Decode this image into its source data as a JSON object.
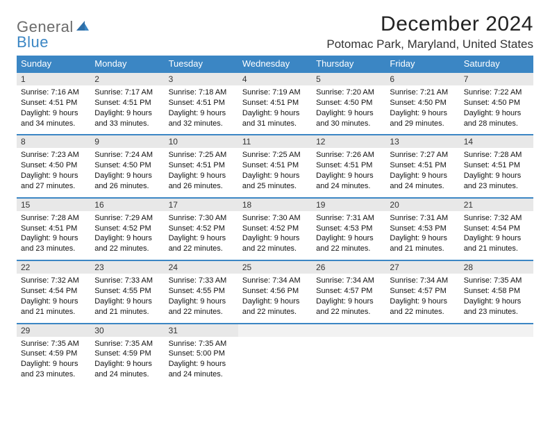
{
  "logo": {
    "text1": "General",
    "text2": "Blue"
  },
  "title": "December 2024",
  "location": "Potomac Park, Maryland, United States",
  "colors": {
    "header_bg": "#3b86c4",
    "header_text": "#ffffff",
    "daynum_bg": "#e8e8e8",
    "border": "#3b86c4",
    "logo_gray": "#6b6b6b",
    "logo_blue": "#3b86c4"
  },
  "dayHeaders": [
    "Sunday",
    "Monday",
    "Tuesday",
    "Wednesday",
    "Thursday",
    "Friday",
    "Saturday"
  ],
  "weeks": [
    [
      {
        "n": "1",
        "sr": "7:16 AM",
        "ss": "4:51 PM",
        "dl": "9 hours and 34 minutes."
      },
      {
        "n": "2",
        "sr": "7:17 AM",
        "ss": "4:51 PM",
        "dl": "9 hours and 33 minutes."
      },
      {
        "n": "3",
        "sr": "7:18 AM",
        "ss": "4:51 PM",
        "dl": "9 hours and 32 minutes."
      },
      {
        "n": "4",
        "sr": "7:19 AM",
        "ss": "4:51 PM",
        "dl": "9 hours and 31 minutes."
      },
      {
        "n": "5",
        "sr": "7:20 AM",
        "ss": "4:50 PM",
        "dl": "9 hours and 30 minutes."
      },
      {
        "n": "6",
        "sr": "7:21 AM",
        "ss": "4:50 PM",
        "dl": "9 hours and 29 minutes."
      },
      {
        "n": "7",
        "sr": "7:22 AM",
        "ss": "4:50 PM",
        "dl": "9 hours and 28 minutes."
      }
    ],
    [
      {
        "n": "8",
        "sr": "7:23 AM",
        "ss": "4:50 PM",
        "dl": "9 hours and 27 minutes."
      },
      {
        "n": "9",
        "sr": "7:24 AM",
        "ss": "4:50 PM",
        "dl": "9 hours and 26 minutes."
      },
      {
        "n": "10",
        "sr": "7:25 AM",
        "ss": "4:51 PM",
        "dl": "9 hours and 26 minutes."
      },
      {
        "n": "11",
        "sr": "7:25 AM",
        "ss": "4:51 PM",
        "dl": "9 hours and 25 minutes."
      },
      {
        "n": "12",
        "sr": "7:26 AM",
        "ss": "4:51 PM",
        "dl": "9 hours and 24 minutes."
      },
      {
        "n": "13",
        "sr": "7:27 AM",
        "ss": "4:51 PM",
        "dl": "9 hours and 24 minutes."
      },
      {
        "n": "14",
        "sr": "7:28 AM",
        "ss": "4:51 PM",
        "dl": "9 hours and 23 minutes."
      }
    ],
    [
      {
        "n": "15",
        "sr": "7:28 AM",
        "ss": "4:51 PM",
        "dl": "9 hours and 23 minutes."
      },
      {
        "n": "16",
        "sr": "7:29 AM",
        "ss": "4:52 PM",
        "dl": "9 hours and 22 minutes."
      },
      {
        "n": "17",
        "sr": "7:30 AM",
        "ss": "4:52 PM",
        "dl": "9 hours and 22 minutes."
      },
      {
        "n": "18",
        "sr": "7:30 AM",
        "ss": "4:52 PM",
        "dl": "9 hours and 22 minutes."
      },
      {
        "n": "19",
        "sr": "7:31 AM",
        "ss": "4:53 PM",
        "dl": "9 hours and 22 minutes."
      },
      {
        "n": "20",
        "sr": "7:31 AM",
        "ss": "4:53 PM",
        "dl": "9 hours and 21 minutes."
      },
      {
        "n": "21",
        "sr": "7:32 AM",
        "ss": "4:54 PM",
        "dl": "9 hours and 21 minutes."
      }
    ],
    [
      {
        "n": "22",
        "sr": "7:32 AM",
        "ss": "4:54 PM",
        "dl": "9 hours and 21 minutes."
      },
      {
        "n": "23",
        "sr": "7:33 AM",
        "ss": "4:55 PM",
        "dl": "9 hours and 21 minutes."
      },
      {
        "n": "24",
        "sr": "7:33 AM",
        "ss": "4:55 PM",
        "dl": "9 hours and 22 minutes."
      },
      {
        "n": "25",
        "sr": "7:34 AM",
        "ss": "4:56 PM",
        "dl": "9 hours and 22 minutes."
      },
      {
        "n": "26",
        "sr": "7:34 AM",
        "ss": "4:57 PM",
        "dl": "9 hours and 22 minutes."
      },
      {
        "n": "27",
        "sr": "7:34 AM",
        "ss": "4:57 PM",
        "dl": "9 hours and 22 minutes."
      },
      {
        "n": "28",
        "sr": "7:35 AM",
        "ss": "4:58 PM",
        "dl": "9 hours and 23 minutes."
      }
    ],
    [
      {
        "n": "29",
        "sr": "7:35 AM",
        "ss": "4:59 PM",
        "dl": "9 hours and 23 minutes."
      },
      {
        "n": "30",
        "sr": "7:35 AM",
        "ss": "4:59 PM",
        "dl": "9 hours and 24 minutes."
      },
      {
        "n": "31",
        "sr": "7:35 AM",
        "ss": "5:00 PM",
        "dl": "9 hours and 24 minutes."
      },
      null,
      null,
      null,
      null
    ]
  ],
  "labels": {
    "sunrise": "Sunrise: ",
    "sunset": "Sunset: ",
    "daylight": "Daylight: "
  }
}
